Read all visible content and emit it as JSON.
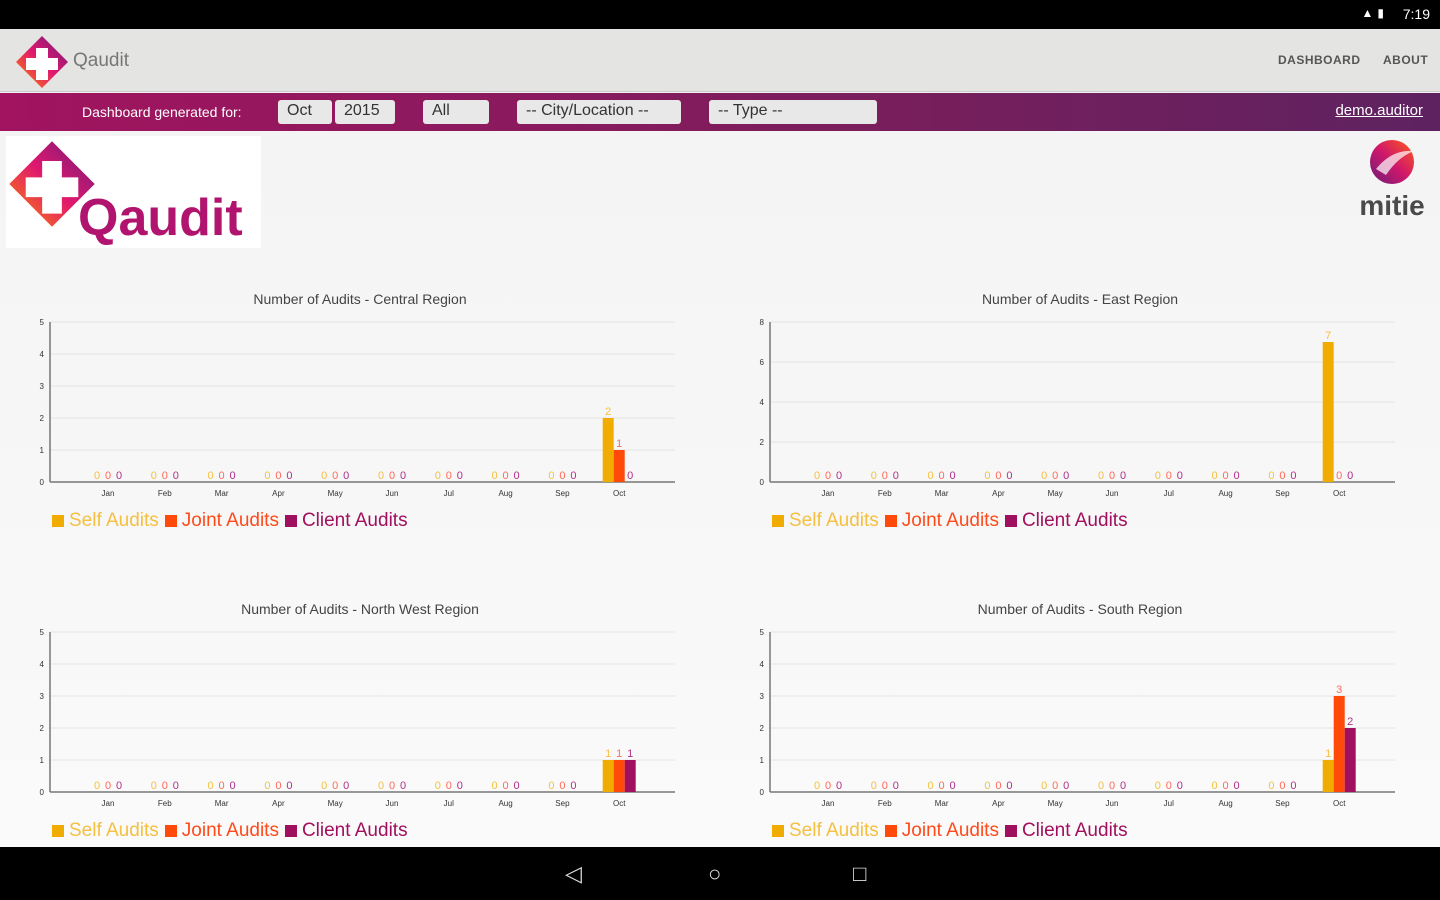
{
  "status": {
    "time": "7:19",
    "icons": "signal-icon battery-icon"
  },
  "appbar": {
    "title": "Qaudit",
    "nav": [
      "DASHBOARD",
      "ABOUT"
    ]
  },
  "filter": {
    "label": "Dashboard generated for:",
    "month": "Oct",
    "year": "2015",
    "scope": "All",
    "city": "-- City/Location --",
    "type": "-- Type --",
    "user": "demo.auditor"
  },
  "branding": {
    "logo_text": "Qaudit",
    "partner": "mitie"
  },
  "colors": {
    "self": "#f0ac00",
    "joint": "#ff4a0a",
    "client": "#a0105e"
  },
  "legend": [
    "Self Audits",
    "Joint Audits",
    "Client Audits"
  ],
  "chart_data": [
    {
      "type": "bar",
      "title": "Number of Audits - Central Region",
      "categories": [
        "Jan",
        "Feb",
        "Mar",
        "Apr",
        "May",
        "Jun",
        "Jul",
        "Aug",
        "Sep",
        "Oct"
      ],
      "ylim": [
        0,
        5
      ],
      "yticks": [
        0,
        1,
        2,
        3,
        4,
        5
      ],
      "series": [
        {
          "name": "Self Audits",
          "values": [
            0,
            0,
            0,
            0,
            0,
            0,
            0,
            0,
            0,
            2
          ]
        },
        {
          "name": "Joint Audits",
          "values": [
            0,
            0,
            0,
            0,
            0,
            0,
            0,
            0,
            0,
            1
          ]
        },
        {
          "name": "Client Audits",
          "values": [
            0,
            0,
            0,
            0,
            0,
            0,
            0,
            0,
            0,
            0
          ]
        }
      ]
    },
    {
      "type": "bar",
      "title": "Number of Audits - East Region",
      "categories": [
        "Jan",
        "Feb",
        "Mar",
        "Apr",
        "May",
        "Jun",
        "Jul",
        "Aug",
        "Sep",
        "Oct"
      ],
      "ylim": [
        0,
        8
      ],
      "yticks": [
        0,
        2,
        4,
        6,
        8
      ],
      "series": [
        {
          "name": "Self Audits",
          "values": [
            0,
            0,
            0,
            0,
            0,
            0,
            0,
            0,
            0,
            7
          ]
        },
        {
          "name": "Joint Audits",
          "values": [
            0,
            0,
            0,
            0,
            0,
            0,
            0,
            0,
            0,
            0
          ]
        },
        {
          "name": "Client Audits",
          "values": [
            0,
            0,
            0,
            0,
            0,
            0,
            0,
            0,
            0,
            0
          ]
        }
      ]
    },
    {
      "type": "bar",
      "title": "Number of Audits - North West Region",
      "categories": [
        "Jan",
        "Feb",
        "Mar",
        "Apr",
        "May",
        "Jun",
        "Jul",
        "Aug",
        "Sep",
        "Oct"
      ],
      "ylim": [
        0,
        5
      ],
      "yticks": [
        0,
        1,
        2,
        3,
        4,
        5
      ],
      "series": [
        {
          "name": "Self Audits",
          "values": [
            0,
            0,
            0,
            0,
            0,
            0,
            0,
            0,
            0,
            1
          ]
        },
        {
          "name": "Joint Audits",
          "values": [
            0,
            0,
            0,
            0,
            0,
            0,
            0,
            0,
            0,
            1
          ]
        },
        {
          "name": "Client Audits",
          "values": [
            0,
            0,
            0,
            0,
            0,
            0,
            0,
            0,
            0,
            1
          ]
        }
      ]
    },
    {
      "type": "bar",
      "title": "Number of Audits - South Region",
      "categories": [
        "Jan",
        "Feb",
        "Mar",
        "Apr",
        "May",
        "Jun",
        "Jul",
        "Aug",
        "Sep",
        "Oct"
      ],
      "ylim": [
        0,
        5
      ],
      "yticks": [
        0,
        1,
        2,
        3,
        4,
        5
      ],
      "series": [
        {
          "name": "Self Audits",
          "values": [
            0,
            0,
            0,
            0,
            0,
            0,
            0,
            0,
            0,
            1
          ]
        },
        {
          "name": "Joint Audits",
          "values": [
            0,
            0,
            0,
            0,
            0,
            0,
            0,
            0,
            0,
            3
          ]
        },
        {
          "name": "Client Audits",
          "values": [
            0,
            0,
            0,
            0,
            0,
            0,
            0,
            0,
            0,
            2
          ]
        }
      ]
    }
  ]
}
